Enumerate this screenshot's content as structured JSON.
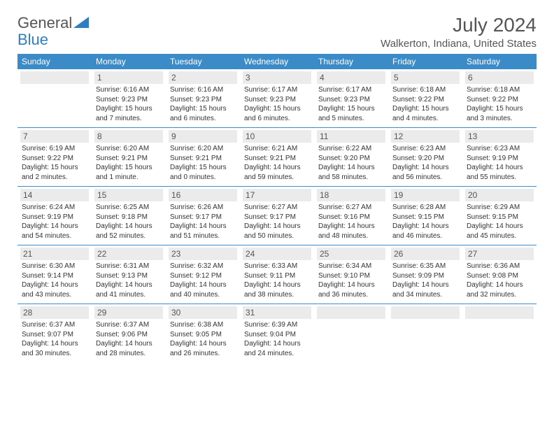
{
  "brand": {
    "part1": "General",
    "part2": "Blue"
  },
  "title": "July 2024",
  "location": "Walkerton, Indiana, United States",
  "colors": {
    "header_bg": "#3b8bc8",
    "header_text": "#ffffff",
    "daynum_bg": "#ebebeb",
    "border": "#3b8bc8",
    "text": "#555555",
    "brand_blue": "#2f7ec2"
  },
  "dayNames": [
    "Sunday",
    "Monday",
    "Tuesday",
    "Wednesday",
    "Thursday",
    "Friday",
    "Saturday"
  ],
  "weeks": [
    [
      {
        "num": "",
        "sunrise": "",
        "sunset": "",
        "daylight": ""
      },
      {
        "num": "1",
        "sunrise": "Sunrise: 6:16 AM",
        "sunset": "Sunset: 9:23 PM",
        "daylight": "Daylight: 15 hours and 7 minutes."
      },
      {
        "num": "2",
        "sunrise": "Sunrise: 6:16 AM",
        "sunset": "Sunset: 9:23 PM",
        "daylight": "Daylight: 15 hours and 6 minutes."
      },
      {
        "num": "3",
        "sunrise": "Sunrise: 6:17 AM",
        "sunset": "Sunset: 9:23 PM",
        "daylight": "Daylight: 15 hours and 6 minutes."
      },
      {
        "num": "4",
        "sunrise": "Sunrise: 6:17 AM",
        "sunset": "Sunset: 9:23 PM",
        "daylight": "Daylight: 15 hours and 5 minutes."
      },
      {
        "num": "5",
        "sunrise": "Sunrise: 6:18 AM",
        "sunset": "Sunset: 9:22 PM",
        "daylight": "Daylight: 15 hours and 4 minutes."
      },
      {
        "num": "6",
        "sunrise": "Sunrise: 6:18 AM",
        "sunset": "Sunset: 9:22 PM",
        "daylight": "Daylight: 15 hours and 3 minutes."
      }
    ],
    [
      {
        "num": "7",
        "sunrise": "Sunrise: 6:19 AM",
        "sunset": "Sunset: 9:22 PM",
        "daylight": "Daylight: 15 hours and 2 minutes."
      },
      {
        "num": "8",
        "sunrise": "Sunrise: 6:20 AM",
        "sunset": "Sunset: 9:21 PM",
        "daylight": "Daylight: 15 hours and 1 minute."
      },
      {
        "num": "9",
        "sunrise": "Sunrise: 6:20 AM",
        "sunset": "Sunset: 9:21 PM",
        "daylight": "Daylight: 15 hours and 0 minutes."
      },
      {
        "num": "10",
        "sunrise": "Sunrise: 6:21 AM",
        "sunset": "Sunset: 9:21 PM",
        "daylight": "Daylight: 14 hours and 59 minutes."
      },
      {
        "num": "11",
        "sunrise": "Sunrise: 6:22 AM",
        "sunset": "Sunset: 9:20 PM",
        "daylight": "Daylight: 14 hours and 58 minutes."
      },
      {
        "num": "12",
        "sunrise": "Sunrise: 6:23 AM",
        "sunset": "Sunset: 9:20 PM",
        "daylight": "Daylight: 14 hours and 56 minutes."
      },
      {
        "num": "13",
        "sunrise": "Sunrise: 6:23 AM",
        "sunset": "Sunset: 9:19 PM",
        "daylight": "Daylight: 14 hours and 55 minutes."
      }
    ],
    [
      {
        "num": "14",
        "sunrise": "Sunrise: 6:24 AM",
        "sunset": "Sunset: 9:19 PM",
        "daylight": "Daylight: 14 hours and 54 minutes."
      },
      {
        "num": "15",
        "sunrise": "Sunrise: 6:25 AM",
        "sunset": "Sunset: 9:18 PM",
        "daylight": "Daylight: 14 hours and 52 minutes."
      },
      {
        "num": "16",
        "sunrise": "Sunrise: 6:26 AM",
        "sunset": "Sunset: 9:17 PM",
        "daylight": "Daylight: 14 hours and 51 minutes."
      },
      {
        "num": "17",
        "sunrise": "Sunrise: 6:27 AM",
        "sunset": "Sunset: 9:17 PM",
        "daylight": "Daylight: 14 hours and 50 minutes."
      },
      {
        "num": "18",
        "sunrise": "Sunrise: 6:27 AM",
        "sunset": "Sunset: 9:16 PM",
        "daylight": "Daylight: 14 hours and 48 minutes."
      },
      {
        "num": "19",
        "sunrise": "Sunrise: 6:28 AM",
        "sunset": "Sunset: 9:15 PM",
        "daylight": "Daylight: 14 hours and 46 minutes."
      },
      {
        "num": "20",
        "sunrise": "Sunrise: 6:29 AM",
        "sunset": "Sunset: 9:15 PM",
        "daylight": "Daylight: 14 hours and 45 minutes."
      }
    ],
    [
      {
        "num": "21",
        "sunrise": "Sunrise: 6:30 AM",
        "sunset": "Sunset: 9:14 PM",
        "daylight": "Daylight: 14 hours and 43 minutes."
      },
      {
        "num": "22",
        "sunrise": "Sunrise: 6:31 AM",
        "sunset": "Sunset: 9:13 PM",
        "daylight": "Daylight: 14 hours and 41 minutes."
      },
      {
        "num": "23",
        "sunrise": "Sunrise: 6:32 AM",
        "sunset": "Sunset: 9:12 PM",
        "daylight": "Daylight: 14 hours and 40 minutes."
      },
      {
        "num": "24",
        "sunrise": "Sunrise: 6:33 AM",
        "sunset": "Sunset: 9:11 PM",
        "daylight": "Daylight: 14 hours and 38 minutes."
      },
      {
        "num": "25",
        "sunrise": "Sunrise: 6:34 AM",
        "sunset": "Sunset: 9:10 PM",
        "daylight": "Daylight: 14 hours and 36 minutes."
      },
      {
        "num": "26",
        "sunrise": "Sunrise: 6:35 AM",
        "sunset": "Sunset: 9:09 PM",
        "daylight": "Daylight: 14 hours and 34 minutes."
      },
      {
        "num": "27",
        "sunrise": "Sunrise: 6:36 AM",
        "sunset": "Sunset: 9:08 PM",
        "daylight": "Daylight: 14 hours and 32 minutes."
      }
    ],
    [
      {
        "num": "28",
        "sunrise": "Sunrise: 6:37 AM",
        "sunset": "Sunset: 9:07 PM",
        "daylight": "Daylight: 14 hours and 30 minutes."
      },
      {
        "num": "29",
        "sunrise": "Sunrise: 6:37 AM",
        "sunset": "Sunset: 9:06 PM",
        "daylight": "Daylight: 14 hours and 28 minutes."
      },
      {
        "num": "30",
        "sunrise": "Sunrise: 6:38 AM",
        "sunset": "Sunset: 9:05 PM",
        "daylight": "Daylight: 14 hours and 26 minutes."
      },
      {
        "num": "31",
        "sunrise": "Sunrise: 6:39 AM",
        "sunset": "Sunset: 9:04 PM",
        "daylight": "Daylight: 14 hours and 24 minutes."
      },
      {
        "num": "",
        "sunrise": "",
        "sunset": "",
        "daylight": ""
      },
      {
        "num": "",
        "sunrise": "",
        "sunset": "",
        "daylight": ""
      },
      {
        "num": "",
        "sunrise": "",
        "sunset": "",
        "daylight": ""
      }
    ]
  ]
}
